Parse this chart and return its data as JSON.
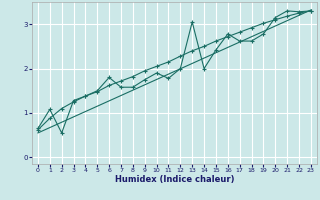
{
  "xlabel": "Humidex (Indice chaleur)",
  "x_ticks": [
    0,
    1,
    2,
    3,
    4,
    5,
    6,
    7,
    8,
    9,
    10,
    11,
    12,
    13,
    14,
    15,
    16,
    17,
    18,
    19,
    20,
    21,
    22,
    23
  ],
  "ylim": [
    -0.15,
    3.5
  ],
  "xlim": [
    -0.5,
    23.5
  ],
  "yticks": [
    0,
    1,
    2,
    3
  ],
  "bg_color": "#cce8e8",
  "grid_color": "#ffffff",
  "line_color": "#1a6e64",
  "line1_x": [
    0,
    1,
    2,
    3,
    4,
    5,
    6,
    7,
    8,
    9,
    10,
    11,
    12,
    13,
    14,
    15,
    16,
    17,
    18,
    19,
    20,
    21,
    22,
    23
  ],
  "line1_y": [
    0.65,
    1.08,
    0.55,
    1.28,
    1.38,
    1.5,
    1.8,
    1.58,
    1.58,
    1.75,
    1.9,
    1.78,
    2.0,
    3.05,
    2.0,
    2.42,
    2.78,
    2.62,
    2.62,
    2.78,
    3.15,
    3.3,
    3.28,
    3.3
  ],
  "line2_x": [
    0,
    1,
    2,
    3,
    4,
    5,
    6,
    7,
    8,
    9,
    10,
    11,
    12,
    13,
    14,
    15,
    16,
    17,
    18,
    19,
    20,
    21,
    22,
    23
  ],
  "line2_y": [
    0.62,
    0.88,
    1.1,
    1.25,
    1.38,
    1.48,
    1.62,
    1.72,
    1.82,
    1.95,
    2.05,
    2.15,
    2.28,
    2.4,
    2.5,
    2.62,
    2.72,
    2.82,
    2.92,
    3.02,
    3.1,
    3.18,
    3.25,
    3.3
  ],
  "line3_x": [
    0,
    23
  ],
  "line3_y": [
    0.55,
    3.32
  ]
}
